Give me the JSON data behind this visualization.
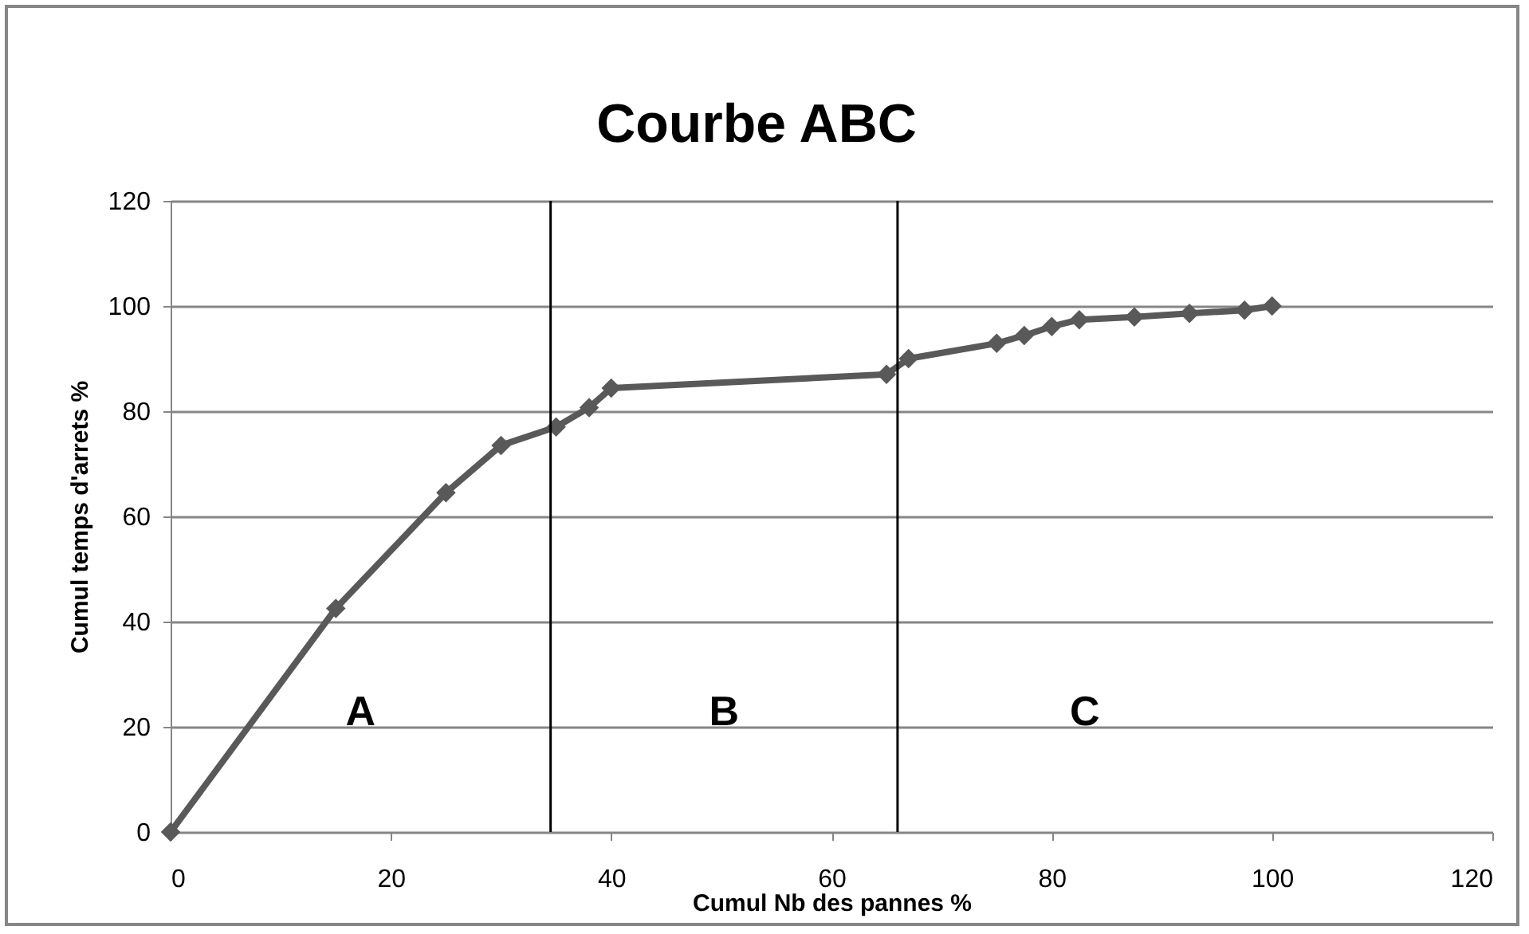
{
  "chart_data": {
    "type": "line",
    "title": "Courbe ABC",
    "xlabel": "Cumul Nb des pannes %",
    "ylabel": "Cumul temps d'arrets %",
    "x": [
      0,
      15,
      25,
      30,
      35,
      38,
      40,
      65,
      67,
      75,
      77.5,
      80,
      82.5,
      87.5,
      92.5,
      97.5,
      100
    ],
    "series": [
      {
        "color": "#595959",
        "values": [
          0,
          42.5,
          64.5,
          73.5,
          77,
          80.7,
          84.4,
          87,
          90,
          92.9,
          94.4,
          96.1,
          97.4,
          97.9,
          98.6,
          99.2,
          100
        ]
      }
    ],
    "xlim": [
      0,
      120
    ],
    "xticks": [
      0,
      20,
      40,
      60,
      80,
      100,
      120
    ],
    "ylim": [
      0,
      120
    ],
    "yticks": [
      0,
      20,
      40,
      60,
      80,
      100,
      120
    ],
    "grid": "y",
    "marker": "diamond",
    "line_style": "solid",
    "ref_lines": [
      {
        "axis": "x",
        "value": 34.5,
        "color": "#000000"
      },
      {
        "axis": "x",
        "value": 66,
        "color": "#000000"
      }
    ],
    "annotations": [
      "A",
      "B",
      "C"
    ]
  }
}
